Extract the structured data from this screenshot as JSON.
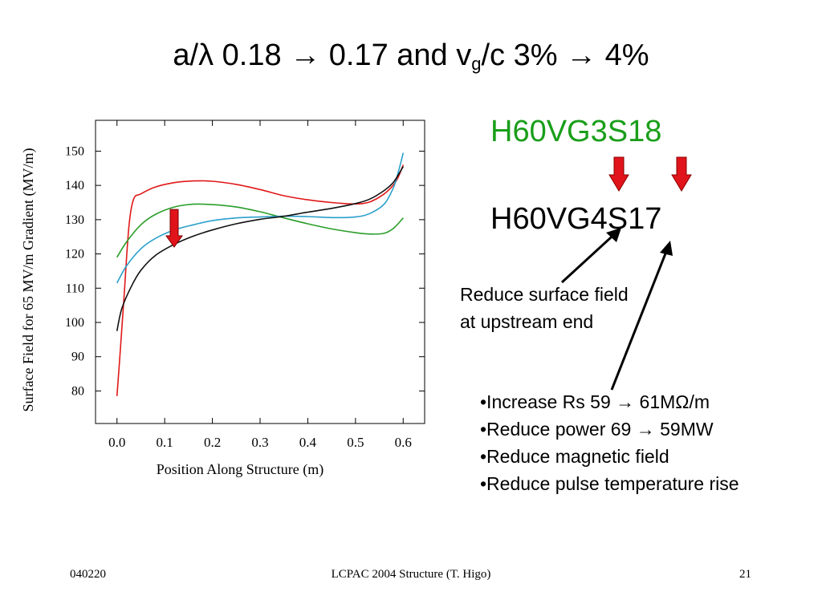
{
  "title": {
    "prefix": "a/",
    "lambda": "λ",
    "part1": " 0.18 ",
    "arrow1": "→",
    "part2": " 0.17 and v",
    "sub": "g",
    "part3": "/c 3% ",
    "arrow2": "→",
    "part4": " 4%"
  },
  "codes": {
    "old": "H60VG3S18",
    "new": "H60VG4S17",
    "old_color": "#1a9e1a",
    "arrow_color": "#e0141a"
  },
  "note": "Reduce surface field at upstream end",
  "bullets": [
    "•Increase Rs  59 → 61MΩ/m",
    "•Reduce power 69 → 59MW",
    "•Reduce magnetic field",
    "•Reduce pulse temperature rise"
  ],
  "footer": {
    "left": "040220",
    "center": "LCPAC 2004  Structure (T. Higo)",
    "right": "21"
  },
  "chart_data": {
    "type": "line",
    "xlabel": "Position Along Structure (m)",
    "ylabel": "Surface Field for 65 MV/m Gradient (MV/m)",
    "xlim": [
      -0.045,
      0.645
    ],
    "ylim": [
      70.5,
      159
    ],
    "xticks": [
      0.0,
      0.1,
      0.2,
      0.3,
      0.4,
      0.5,
      0.6
    ],
    "xtick_labels": [
      "0.0",
      "0.1",
      "0.2",
      "0.3",
      "0.4",
      "0.5",
      "0.6"
    ],
    "yticks": [
      80,
      90,
      100,
      110,
      120,
      130,
      140,
      150
    ],
    "ytick_labels": [
      "80",
      "90",
      "100",
      "110",
      "120",
      "130",
      "140",
      "150"
    ],
    "grid": false,
    "annotation": {
      "type": "down-arrow",
      "x": 0.12,
      "y_from": 133,
      "y_to": 122,
      "color": "#e0141a"
    },
    "series": [
      {
        "color": "#e01818",
        "x": [
          0.0,
          0.005,
          0.015,
          0.025,
          0.035,
          0.05,
          0.08,
          0.12,
          0.16,
          0.2,
          0.25,
          0.3,
          0.35,
          0.4,
          0.45,
          0.5,
          0.53,
          0.56,
          0.58,
          0.59,
          0.6
        ],
        "y": [
          78.5,
          88,
          108,
          128,
          136,
          137.5,
          139.5,
          140.8,
          141.3,
          141.2,
          140.3,
          138.8,
          137,
          135.8,
          135,
          134.6,
          135.2,
          137.5,
          140.2,
          142.5,
          146
        ]
      },
      {
        "color": "#2a9e2a",
        "x": [
          0.0,
          0.02,
          0.05,
          0.08,
          0.12,
          0.16,
          0.2,
          0.25,
          0.3,
          0.35,
          0.4,
          0.45,
          0.5,
          0.53,
          0.56,
          0.58,
          0.6
        ],
        "y": [
          119,
          123.5,
          128.5,
          131.5,
          133.7,
          134.5,
          134.4,
          133.7,
          132.3,
          130.5,
          128.8,
          127.3,
          126.2,
          125.8,
          126,
          127.5,
          130.5
        ]
      },
      {
        "color": "#2aa0cc",
        "x": [
          0.0,
          0.02,
          0.05,
          0.08,
          0.12,
          0.16,
          0.2,
          0.25,
          0.3,
          0.35,
          0.4,
          0.45,
          0.5,
          0.53,
          0.56,
          0.58,
          0.59,
          0.6
        ],
        "y": [
          111.5,
          116.5,
          121.5,
          124.5,
          127,
          128.5,
          129.7,
          130.5,
          130.8,
          131,
          130.9,
          130.6,
          130.8,
          131.8,
          134.5,
          139.5,
          144,
          149.5
        ]
      },
      {
        "color": "#111111",
        "x": [
          0.0,
          0.01,
          0.03,
          0.05,
          0.08,
          0.12,
          0.16,
          0.2,
          0.25,
          0.3,
          0.35,
          0.4,
          0.45,
          0.5,
          0.53,
          0.56,
          0.58,
          0.6
        ],
        "y": [
          97.5,
          104,
          110.5,
          115.2,
          119.5,
          122.8,
          125.2,
          127,
          128.8,
          130.1,
          131,
          132.2,
          133.3,
          134.7,
          136,
          138.5,
          141,
          145.5
        ]
      }
    ]
  }
}
